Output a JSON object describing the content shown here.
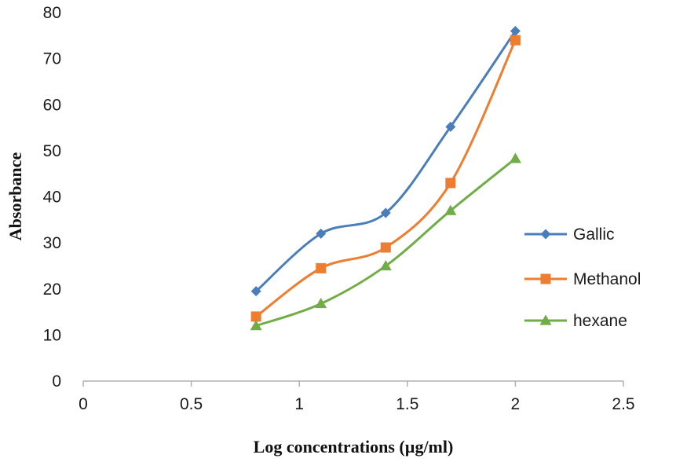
{
  "chart_data": {
    "type": "line",
    "xlabel": "Log concentrations (µg/ml)",
    "ylabel": "Absorbance",
    "xlim": [
      0,
      2.5
    ],
    "ylim": [
      0,
      80
    ],
    "x_ticks": [
      "0",
      "0.5",
      "1",
      "1.5",
      "2",
      "2.5"
    ],
    "y_ticks": [
      "0",
      "10",
      "20",
      "30",
      "40",
      "50",
      "60",
      "70",
      "80"
    ],
    "x_tick_values": [
      0,
      0.5,
      1,
      1.5,
      2,
      2.5
    ],
    "y_tick_values": [
      0,
      10,
      20,
      30,
      40,
      50,
      60,
      70,
      80
    ],
    "grid": false,
    "smooth": true,
    "legend_position": "right",
    "x": [
      0.8,
      1.1,
      1.4,
      1.7,
      2.0
    ],
    "series": [
      {
        "name": "Gallic",
        "values": [
          19.5,
          32,
          36.5,
          55.2,
          76
        ],
        "color": "#4a7ebb",
        "marker": "diamond"
      },
      {
        "name": "Methanol",
        "values": [
          14,
          24.5,
          29,
          43,
          74
        ],
        "color": "#ed7d31",
        "marker": "square"
      },
      {
        "name": "hexane",
        "values": [
          12,
          16.8,
          25,
          37,
          48.3
        ],
        "color": "#70ad47",
        "marker": "triangle"
      }
    ]
  }
}
